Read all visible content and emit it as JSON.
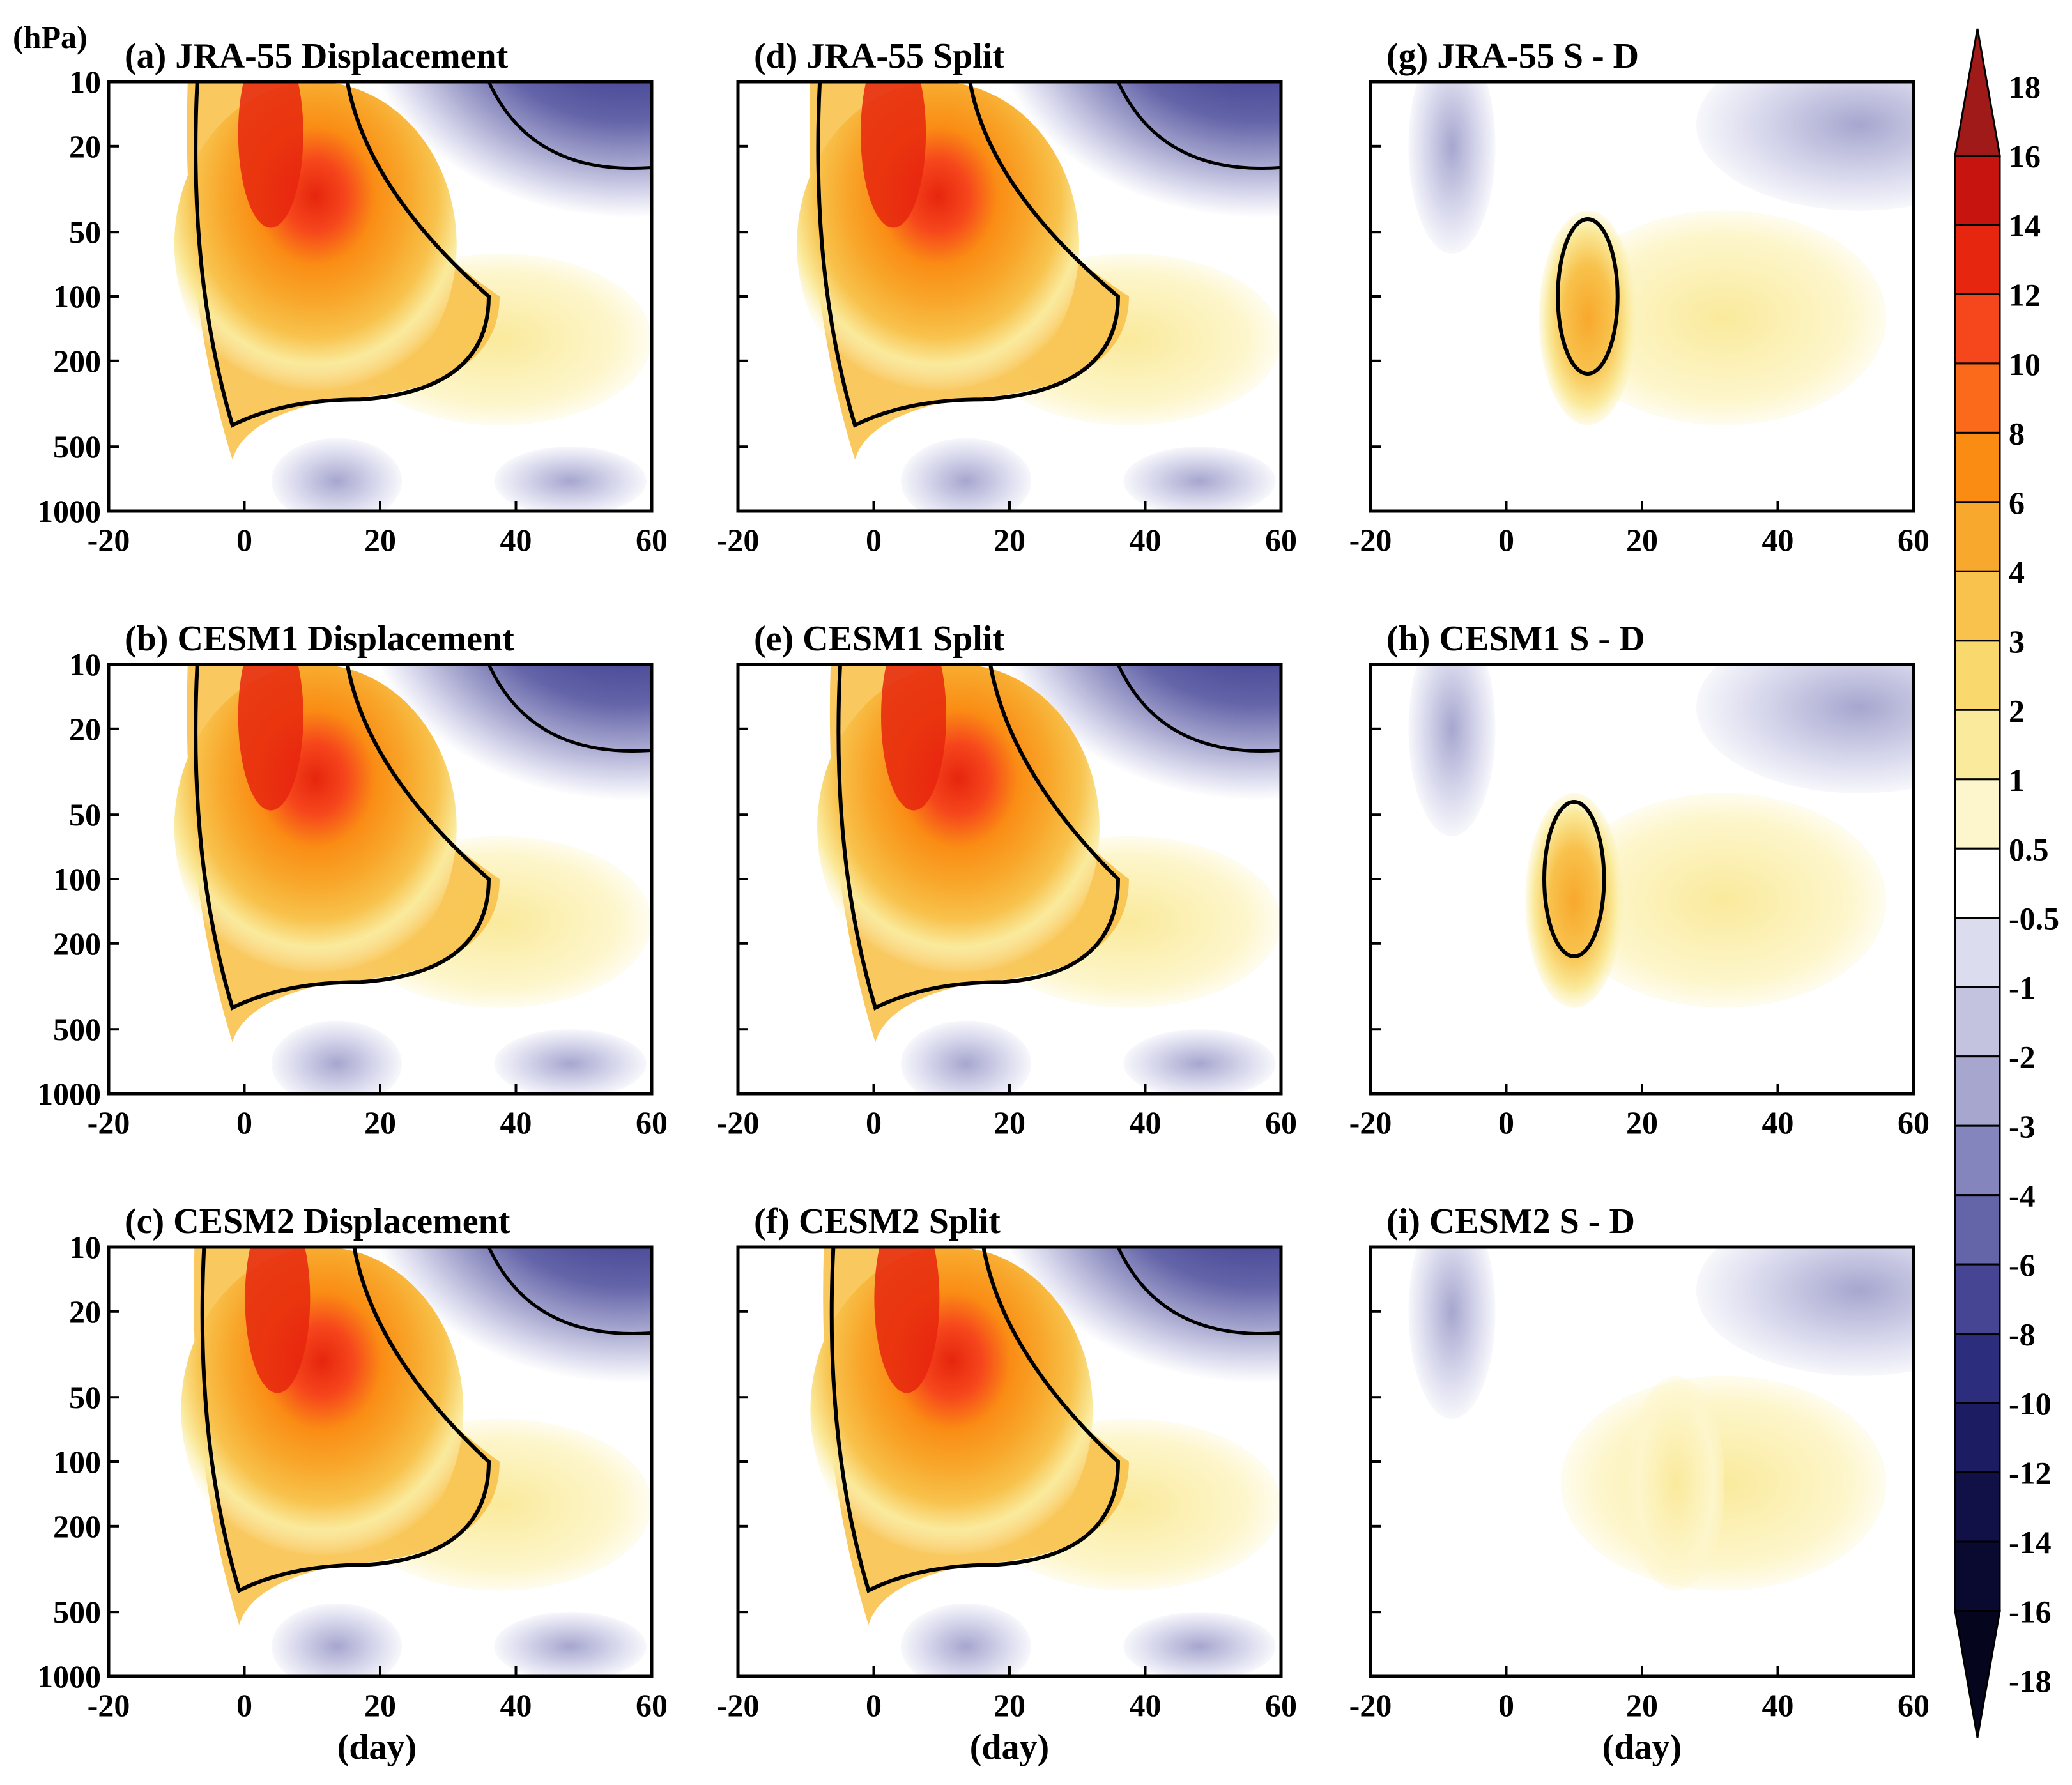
{
  "figure": {
    "y_axis_unit": "(hPa)",
    "x_axis_label": "(day)"
  },
  "colorbar": {
    "levels": [
      "18",
      "16",
      "14",
      "12",
      "10",
      "8",
      "6",
      "4",
      "3",
      "2",
      "1",
      "0.5",
      "-0.5",
      "-1",
      "-2",
      "-3",
      "-4",
      "-6",
      "-8",
      "-10",
      "-12",
      "-14",
      "-16",
      "-18"
    ],
    "colors": [
      "#a11a1a",
      "#c8140f",
      "#e6260e",
      "#f6461c",
      "#fb6a1a",
      "#fa8c14",
      "#f8a82c",
      "#f8c24c",
      "#f9d86e",
      "#faea9c",
      "#fdf6cc",
      "#ffffff",
      "#dcdcef",
      "#c3c3e0",
      "#a6a6cf",
      "#8585bd",
      "#6464a9",
      "#454594",
      "#2d2d7d",
      "#1c1c63",
      "#111148",
      "#0a0a30",
      "#05051e"
    ]
  },
  "chart_data": [
    {
      "id": "a",
      "type": "heatmap",
      "title": "(a)  JRA-55 Displacement",
      "x_ticks": [
        "-20",
        "0",
        "20",
        "40",
        "60"
      ],
      "y_ticks": [
        "10",
        "20",
        "50",
        "100",
        "200",
        "500",
        "1000"
      ],
      "xlim": [
        -20,
        60
      ],
      "ylim_hPa": [
        1000,
        10
      ],
      "peak": 14,
      "peak_day": 2,
      "negative_min": -8
    },
    {
      "id": "d",
      "type": "heatmap",
      "title": "(d)  JRA-55 Split",
      "x_ticks": [
        "-20",
        "0",
        "20",
        "40",
        "60"
      ],
      "y_ticks": [
        "10",
        "20",
        "50",
        "100",
        "200",
        "500",
        "1000"
      ],
      "xlim": [
        -20,
        60
      ],
      "ylim_hPa": [
        1000,
        10
      ],
      "peak": 16,
      "peak_day": 1,
      "negative_min": -10
    },
    {
      "id": "g",
      "type": "heatmap",
      "title": "(g)  JRA-55   S - D",
      "x_ticks": [
        "-20",
        "0",
        "20",
        "40",
        "60"
      ],
      "y_ticks": [
        "10",
        "20",
        "50",
        "100",
        "200",
        "500",
        "1000"
      ],
      "xlim": [
        -20,
        60
      ],
      "ylim_hPa": [
        1000,
        10
      ],
      "peak": 6,
      "peak_day": 12,
      "negative_min": -6
    },
    {
      "id": "b",
      "type": "heatmap",
      "title": "(b)  CESM1 Displacement",
      "x_ticks": [
        "-20",
        "0",
        "20",
        "40",
        "60"
      ],
      "y_ticks": [
        "10",
        "20",
        "50",
        "100",
        "200",
        "500",
        "1000"
      ],
      "xlim": [
        -20,
        60
      ],
      "ylim_hPa": [
        1000,
        10
      ],
      "peak": 14,
      "peak_day": 2,
      "negative_min": -8
    },
    {
      "id": "e",
      "type": "heatmap",
      "title": "(e)  CESM1 Split",
      "x_ticks": [
        "-20",
        "0",
        "20",
        "40",
        "60"
      ],
      "y_ticks": [
        "10",
        "20",
        "50",
        "100",
        "200",
        "500",
        "1000"
      ],
      "xlim": [
        -20,
        60
      ],
      "ylim_hPa": [
        1000,
        10
      ],
      "peak": 14,
      "peak_day": 4,
      "negative_min": -8
    },
    {
      "id": "h",
      "type": "heatmap",
      "title": "(h)  CESM1   S - D",
      "x_ticks": [
        "-20",
        "0",
        "20",
        "40",
        "60"
      ],
      "y_ticks": [
        "10",
        "20",
        "50",
        "100",
        "200",
        "500",
        "1000"
      ],
      "xlim": [
        -20,
        60
      ],
      "ylim_hPa": [
        1000,
        10
      ],
      "peak": 4,
      "peak_day": 10,
      "negative_min": -6
    },
    {
      "id": "c",
      "type": "heatmap",
      "title": "(c)  CESM2 Displacement",
      "x_ticks": [
        "-20",
        "0",
        "20",
        "40",
        "60"
      ],
      "y_ticks": [
        "10",
        "20",
        "50",
        "100",
        "200",
        "500",
        "1000"
      ],
      "xlim": [
        -20,
        60
      ],
      "ylim_hPa": [
        1000,
        10
      ],
      "peak": 14,
      "peak_day": 3,
      "negative_min": -8
    },
    {
      "id": "f",
      "type": "heatmap",
      "title": "(f)  CESM2 Split",
      "x_ticks": [
        "-20",
        "0",
        "20",
        "40",
        "60"
      ],
      "y_ticks": [
        "10",
        "20",
        "50",
        "100",
        "200",
        "500",
        "1000"
      ],
      "xlim": [
        -20,
        60
      ],
      "ylim_hPa": [
        1000,
        10
      ],
      "peak": 14,
      "peak_day": 3,
      "negative_min": -8
    },
    {
      "id": "i",
      "type": "heatmap",
      "title": "(i)  CESM2   S - D",
      "x_ticks": [
        "-20",
        "0",
        "20",
        "40",
        "60"
      ],
      "y_ticks": [
        "10",
        "20",
        "50",
        "100",
        "200",
        "500",
        "1000"
      ],
      "xlim": [
        -20,
        60
      ],
      "ylim_hPa": [
        1000,
        10
      ],
      "peak": 1,
      "peak_day": 25,
      "negative_min": -2
    }
  ]
}
